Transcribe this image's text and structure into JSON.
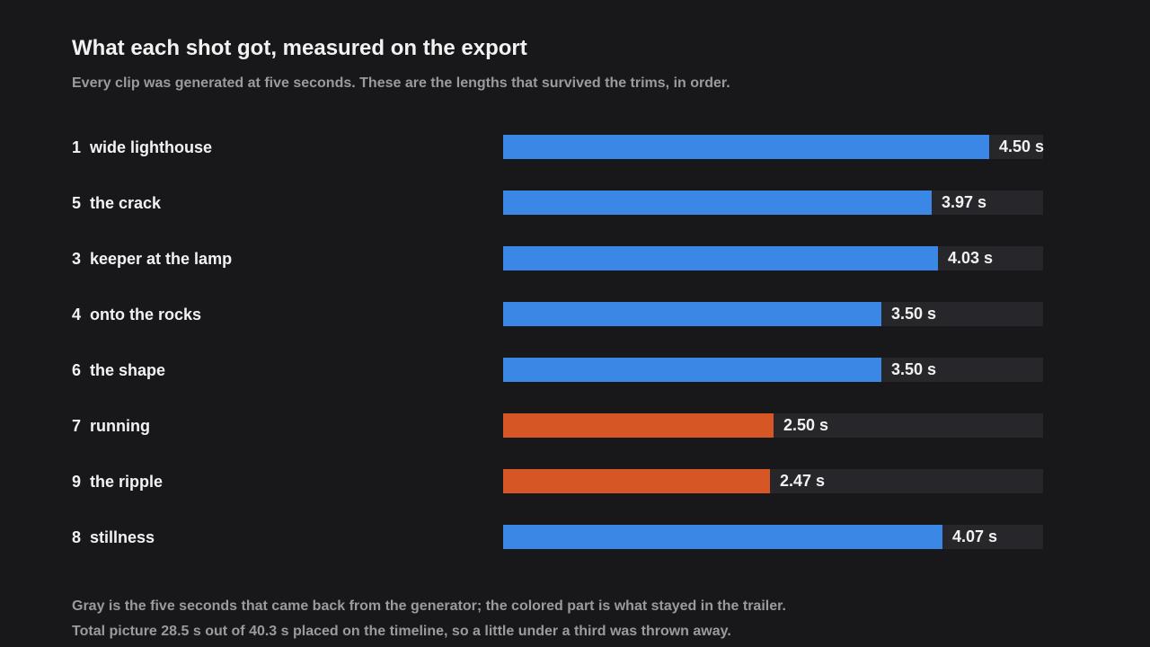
{
  "header": {
    "title": "What each shot got, measured on the export",
    "subtitle": "Every clip was generated at five seconds. These are the lengths that survived the trims, in order."
  },
  "chart_data": {
    "type": "bar",
    "orientation": "horizontal",
    "max_value": 5,
    "unit": "s",
    "colors": {
      "track": "#27272b",
      "normal": "#3a87e6",
      "short": "#d65626"
    },
    "bars": [
      {
        "rank": "1",
        "name": "wide lighthouse",
        "value": 4.5,
        "label": "4.50 s",
        "highlight": false
      },
      {
        "rank": "5",
        "name": "the crack",
        "value": 3.97,
        "label": "3.97 s",
        "highlight": false
      },
      {
        "rank": "3",
        "name": "keeper at the lamp",
        "value": 4.03,
        "label": "4.03 s",
        "highlight": false
      },
      {
        "rank": "4",
        "name": "onto the rocks",
        "value": 3.5,
        "label": "3.50 s",
        "highlight": false
      },
      {
        "rank": "6",
        "name": "the shape",
        "value": 3.5,
        "label": "3.50 s",
        "highlight": false
      },
      {
        "rank": "7",
        "name": "running",
        "value": 2.5,
        "label": "2.50 s",
        "highlight": true
      },
      {
        "rank": "9",
        "name": "the ripple",
        "value": 2.47,
        "label": "2.47 s",
        "highlight": true
      },
      {
        "rank": "8",
        "name": "stillness",
        "value": 4.07,
        "label": "4.07 s",
        "highlight": false
      }
    ]
  },
  "footer": {
    "line1": "Gray is the five seconds that came back from the generator; the colored part is what stayed in the trailer.",
    "line2": "Total picture 28.5 s out of 40.3 s placed on the timeline, so a little under a third was thrown away."
  }
}
